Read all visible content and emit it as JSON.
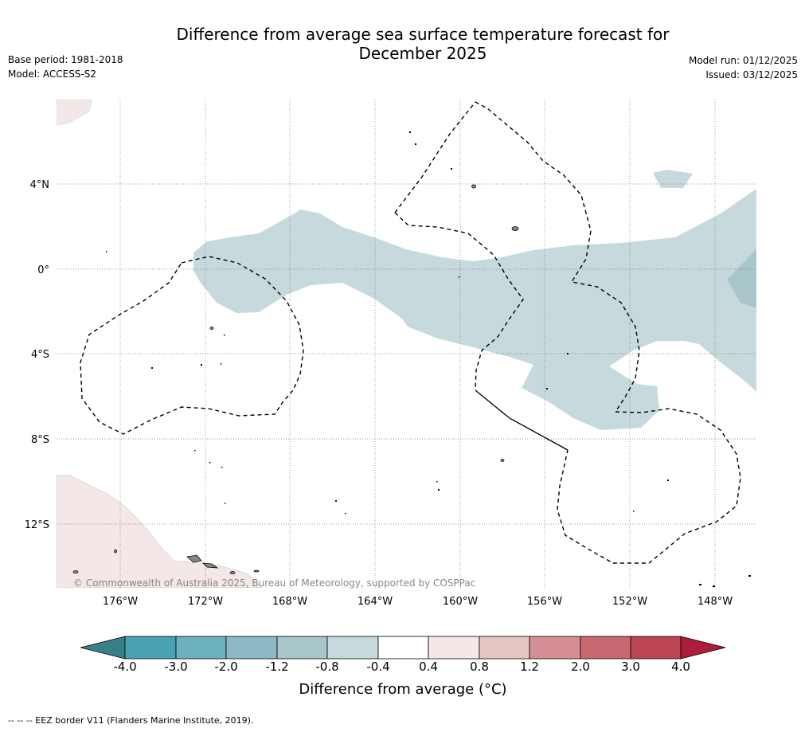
{
  "title": {
    "line1": "Difference from average sea surface temperature forecast for",
    "line2": "December 2025"
  },
  "left_meta": {
    "base_period": "Base period: 1981-2018",
    "model": "Model: ACCESS-S2"
  },
  "right_meta": {
    "model_run": "Model run: 01/12/2025",
    "issued": "Issued: 03/12/2025"
  },
  "map": {
    "lat_labels": [
      "4°N",
      "0°",
      "4°S",
      "8°S",
      "12°S"
    ],
    "lon_labels": [
      "176°W",
      "172°W",
      "168°W",
      "164°W",
      "160°W",
      "156°W",
      "152°W",
      "148°W"
    ],
    "copyright": "© Commonwealth of Australia 2025, Bureau of Meteorology, supported by COSPPac",
    "colors": {
      "anomaly_cool_light": "#c6d9dd",
      "anomaly_cool_mid": "#a9c6cb",
      "anomaly_warm_light": "#f3e7e7",
      "land": "#888888",
      "grid": "#777777"
    }
  },
  "colorbar": {
    "ticks": [
      "-4.0",
      "-3.0",
      "-2.0",
      "-1.2",
      "-0.8",
      "-0.4",
      "0.4",
      "0.8",
      "1.2",
      "2.0",
      "3.0",
      "4.0"
    ],
    "colors": [
      "#48a2b1",
      "#6cb0be",
      "#8db9c5",
      "#a9c6cb",
      "#c6d9dd",
      "#ffffff",
      "#f3e7e7",
      "#e6c6c2",
      "#d58e95",
      "#c96871",
      "#bd4552"
    ],
    "under_color": "#3a7e86",
    "over_color": "#ad1c3a",
    "label": "Difference from average (°C)"
  },
  "footnote": "--  --  -- EEZ border V11 (Flanders Marine Institute, 2019)."
}
